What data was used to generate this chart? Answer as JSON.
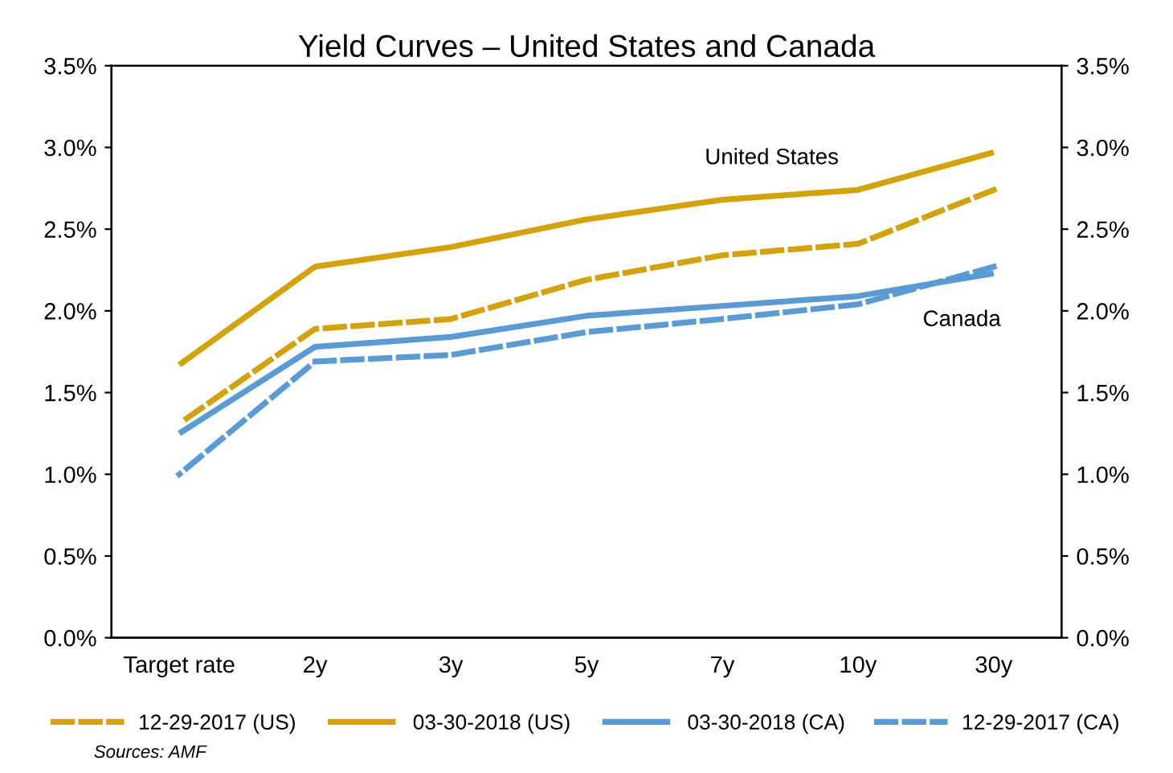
{
  "chart_data": {
    "type": "line",
    "title": "Yield Curves – United States and Canada",
    "categories": [
      "Target rate",
      "2y",
      "3y",
      "5y",
      "7y",
      "10y",
      "30y"
    ],
    "series": [
      {
        "name": "12-29-2017 (US)",
        "color": "#d4a20c",
        "line_style": "dashed",
        "values": [
          1.31,
          1.89,
          1.95,
          2.19,
          2.34,
          2.41,
          2.74
        ]
      },
      {
        "name": "03-30-2018 (US)",
        "color": "#d4a20c",
        "line_style": "solid",
        "values": [
          1.67,
          2.27,
          2.39,
          2.56,
          2.68,
          2.74,
          2.97
        ]
      },
      {
        "name": "03-30-2018 (CA)",
        "color": "#5b9bd5",
        "line_style": "solid",
        "values": [
          1.25,
          1.78,
          1.84,
          1.97,
          2.03,
          2.09,
          2.23
        ]
      },
      {
        "name": "12-29-2017 (CA)",
        "color": "#5b9bd5",
        "line_style": "dashed",
        "values": [
          1.0,
          1.69,
          1.73,
          1.87,
          1.95,
          2.04,
          2.27
        ]
      }
    ],
    "ylim": [
      0,
      3.5
    ],
    "yticks": [
      {
        "value": 0,
        "label": "0.0%"
      },
      {
        "value": 0.5,
        "label": "0.5%"
      },
      {
        "value": 1.0,
        "label": "1.0%"
      },
      {
        "value": 1.5,
        "label": "1.5%"
      },
      {
        "value": 2.0,
        "label": "2.0%"
      },
      {
        "value": 2.5,
        "label": "2.5%"
      },
      {
        "value": 3.0,
        "label": "3.0%"
      },
      {
        "value": 3.5,
        "label": "3.5%"
      }
    ],
    "y2lim": [
      0,
      3.5
    ],
    "y2ticks": [
      {
        "value": 0,
        "label": "0.0%"
      },
      {
        "value": 0.5,
        "label": "0.5%"
      },
      {
        "value": 1.0,
        "label": "1.0%"
      },
      {
        "value": 1.5,
        "label": "1.5%"
      },
      {
        "value": 2.0,
        "label": "2.0%"
      },
      {
        "value": 2.5,
        "label": "2.5%"
      },
      {
        "value": 3.0,
        "label": "3.0%"
      },
      {
        "value": 3.5,
        "label": "3.5%"
      }
    ],
    "annotations": [
      "United States",
      "Canada",
      "Sources: AMF"
    ],
    "legend": "bottom",
    "grid": false,
    "marker": "none"
  }
}
